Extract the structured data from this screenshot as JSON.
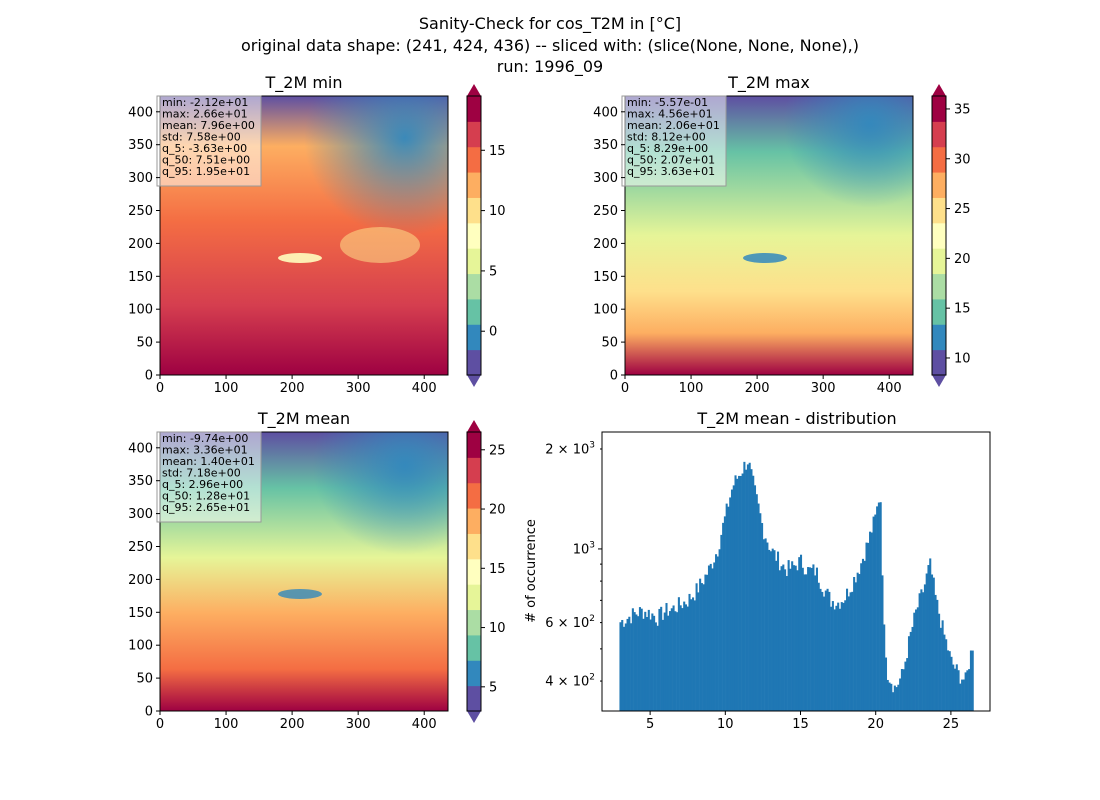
{
  "figure": {
    "title_lines": [
      "Sanity-Check for cos_T2M in [°C]",
      "original data shape: (241, 424, 436) -- sliced with: (slice(None, None, None),)",
      "run: 1996_09"
    ]
  },
  "chart_data": [
    {
      "type": "heatmap",
      "title": "T_2M min",
      "colormap": "Spectral_r",
      "x_ticks": [
        0,
        100,
        200,
        300,
        400
      ],
      "xlim": [
        0,
        436
      ],
      "y_ticks": [
        0,
        50,
        100,
        150,
        200,
        250,
        300,
        350,
        400
      ],
      "ylim": [
        0,
        424
      ],
      "colorbar": {
        "ticks": [
          0,
          5,
          10,
          15
        ],
        "tick_labels": [
          "0",
          "5",
          "10",
          "15"
        ],
        "range": [
          -3.63,
          19.5
        ],
        "extend": "both"
      },
      "stats": [
        "min: -2.12e+01",
        "max: 2.66e+01",
        "mean: 7.96e+00",
        "std: 7.58e+00",
        "q_5: -3.63e+00",
        "q_50: 7.51e+00",
        "q_95: 1.95e+01"
      ]
    },
    {
      "type": "heatmap",
      "title": "T_2M max",
      "colormap": "Spectral_r",
      "x_ticks": [
        0,
        100,
        200,
        300,
        400
      ],
      "xlim": [
        0,
        436
      ],
      "y_ticks": [
        0,
        50,
        100,
        150,
        200,
        250,
        300,
        350,
        400
      ],
      "ylim": [
        0,
        424
      ],
      "colorbar": {
        "ticks": [
          10,
          15,
          20,
          25,
          30,
          35
        ],
        "tick_labels": [
          "10",
          "15",
          "20",
          "25",
          "30",
          "35"
        ],
        "range": [
          8.29,
          36.3
        ],
        "extend": "both"
      },
      "stats": [
        "min: -5.57e-01",
        "max: 4.56e+01",
        "mean: 2.06e+01",
        "std: 8.12e+00",
        "q_5: 8.29e+00",
        "q_50: 2.07e+01",
        "q_95: 3.63e+01"
      ]
    },
    {
      "type": "heatmap",
      "title": "T_2M mean",
      "colormap": "Spectral_r",
      "x_ticks": [
        0,
        100,
        200,
        300,
        400
      ],
      "xlim": [
        0,
        436
      ],
      "y_ticks": [
        0,
        50,
        100,
        150,
        200,
        250,
        300,
        350,
        400
      ],
      "ylim": [
        0,
        424
      ],
      "colorbar": {
        "ticks": [
          5,
          10,
          15,
          20,
          25
        ],
        "tick_labels": [
          "5",
          "10",
          "15",
          "20",
          "25"
        ],
        "range": [
          2.96,
          26.5
        ],
        "extend": "both"
      },
      "stats": [
        "min: -9.74e+00",
        "max: 3.36e+01",
        "mean: 1.40e+01",
        "std: 7.18e+00",
        "q_5: 2.96e+00",
        "q_50: 1.28e+01",
        "q_95: 2.65e+01"
      ]
    },
    {
      "type": "bar",
      "title": "T_2M mean - distribution",
      "ylabel": "# of occurrence",
      "yscale": "log",
      "color": "#1f77b4",
      "x_ticks": [
        5,
        10,
        15,
        20,
        25
      ],
      "xlim": [
        1.8,
        27.6
      ],
      "ylim": [
        325,
        2250
      ],
      "y_major_ticks": [
        {
          "value": 1000,
          "base": "10",
          "exp": "3"
        }
      ],
      "y_minor_labeled": [
        {
          "value": 400,
          "mant": "4",
          "base": "10",
          "exp": "2"
        },
        {
          "value": 600,
          "mant": "6",
          "base": "10",
          "exp": "2"
        },
        {
          "value": 2000,
          "mant": "2",
          "base": "10",
          "exp": "3"
        }
      ],
      "bin_edges": [
        2.96,
        26.5
      ],
      "profile": [
        [
          2.96,
          600
        ],
        [
          3.5,
          620
        ],
        [
          4.0,
          640
        ],
        [
          4.5,
          650
        ],
        [
          5.0,
          640
        ],
        [
          5.5,
          620
        ],
        [
          6.0,
          650
        ],
        [
          6.5,
          660
        ],
        [
          7.0,
          680
        ],
        [
          7.5,
          700
        ],
        [
          8.0,
          740
        ],
        [
          8.5,
          800
        ],
        [
          9.0,
          880
        ],
        [
          9.5,
          1000
        ],
        [
          10.0,
          1250
        ],
        [
          10.5,
          1550
        ],
        [
          11.0,
          1700
        ],
        [
          11.5,
          1850
        ],
        [
          12.0,
          1450
        ],
        [
          12.5,
          1150
        ],
        [
          13.0,
          1000
        ],
        [
          13.5,
          930
        ],
        [
          14.0,
          870
        ],
        [
          14.5,
          880
        ],
        [
          15.0,
          920
        ],
        [
          15.5,
          860
        ],
        [
          16.0,
          860
        ],
        [
          16.5,
          770
        ],
        [
          17.0,
          700
        ],
        [
          17.5,
          690
        ],
        [
          18.0,
          720
        ],
        [
          18.5,
          800
        ],
        [
          19.0,
          900
        ],
        [
          19.5,
          1050
        ],
        [
          20.0,
          1250
        ],
        [
          20.3,
          1500
        ],
        [
          20.5,
          600
        ],
        [
          20.8,
          420
        ],
        [
          21.3,
          380
        ],
        [
          21.8,
          420
        ],
        [
          22.2,
          520
        ],
        [
          22.7,
          650
        ],
        [
          23.2,
          760
        ],
        [
          23.6,
          900
        ],
        [
          24.0,
          700
        ],
        [
          24.5,
          560
        ],
        [
          25.0,
          460
        ],
        [
          25.5,
          420
        ],
        [
          26.0,
          400
        ],
        [
          26.5,
          530
        ]
      ]
    }
  ]
}
